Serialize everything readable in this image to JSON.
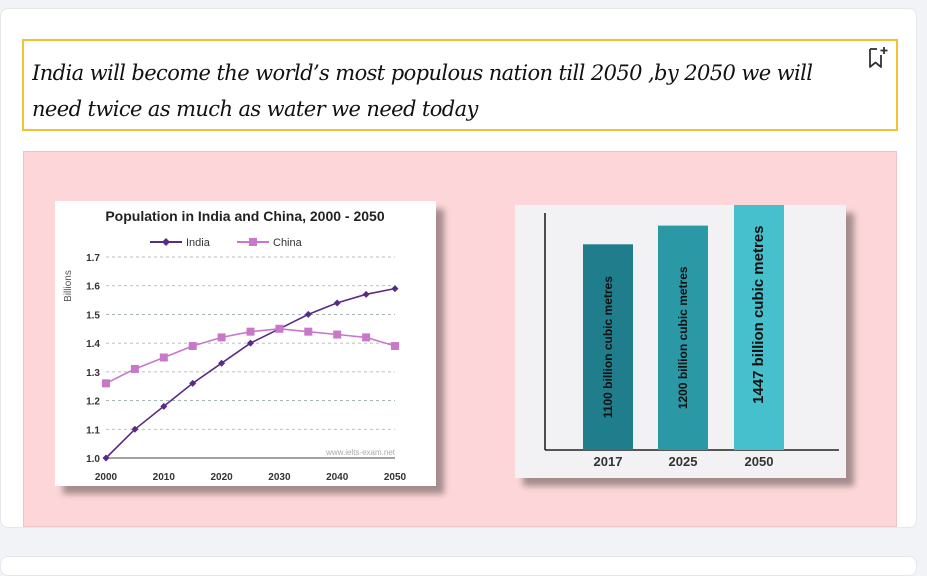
{
  "header": {
    "title": "India will become the world’s most populous nation till 2050 ,by 2050 we will need twice as much as water we need today",
    "bookmark_icon": "bookmark-add-icon"
  },
  "colors": {
    "border_accent": "#f2c232",
    "panel_bg": "#fcd6d8",
    "india": "#5b2a86",
    "china": "#c978c9",
    "bar_2017": "#1f7d8c",
    "bar_2025": "#2b98a6",
    "bar_2050": "#45c0cc"
  },
  "chart_data": [
    {
      "type": "line",
      "title": "Population in India and China, 2000 - 2050",
      "ylabel": "Billions",
      "xlabel": "",
      "x": [
        2000,
        2005,
        2010,
        2015,
        2020,
        2025,
        2030,
        2035,
        2040,
        2045,
        2050
      ],
      "xticks": [
        "2000",
        "2010",
        "2020",
        "2030",
        "2040",
        "2050"
      ],
      "yticks": [
        "1.0",
        "1.1",
        "1.2",
        "1.3",
        "1.4",
        "1.5",
        "1.6",
        "1.7"
      ],
      "ylim": [
        1.0,
        1.7
      ],
      "grid": "dashed horizontal",
      "legend": "top-center",
      "watermark": "www.ielts-exam.net",
      "series": [
        {
          "name": "India",
          "marker": "diamond",
          "values": [
            1.0,
            1.1,
            1.18,
            1.26,
            1.33,
            1.4,
            1.45,
            1.5,
            1.54,
            1.57,
            1.59
          ]
        },
        {
          "name": "China",
          "marker": "square",
          "values": [
            1.26,
            1.31,
            1.35,
            1.39,
            1.42,
            1.44,
            1.45,
            1.44,
            1.43,
            1.42,
            1.39
          ]
        }
      ]
    },
    {
      "type": "bar",
      "categories": [
        "2017",
        "2025",
        "2050"
      ],
      "values": [
        1100,
        1200,
        1447
      ],
      "bar_labels": [
        "1100 billion cubic metres",
        "1200 billion cubic metres",
        "1447 billion cubic metres"
      ],
      "title": "",
      "xlabel": "",
      "ylabel": ""
    }
  ]
}
